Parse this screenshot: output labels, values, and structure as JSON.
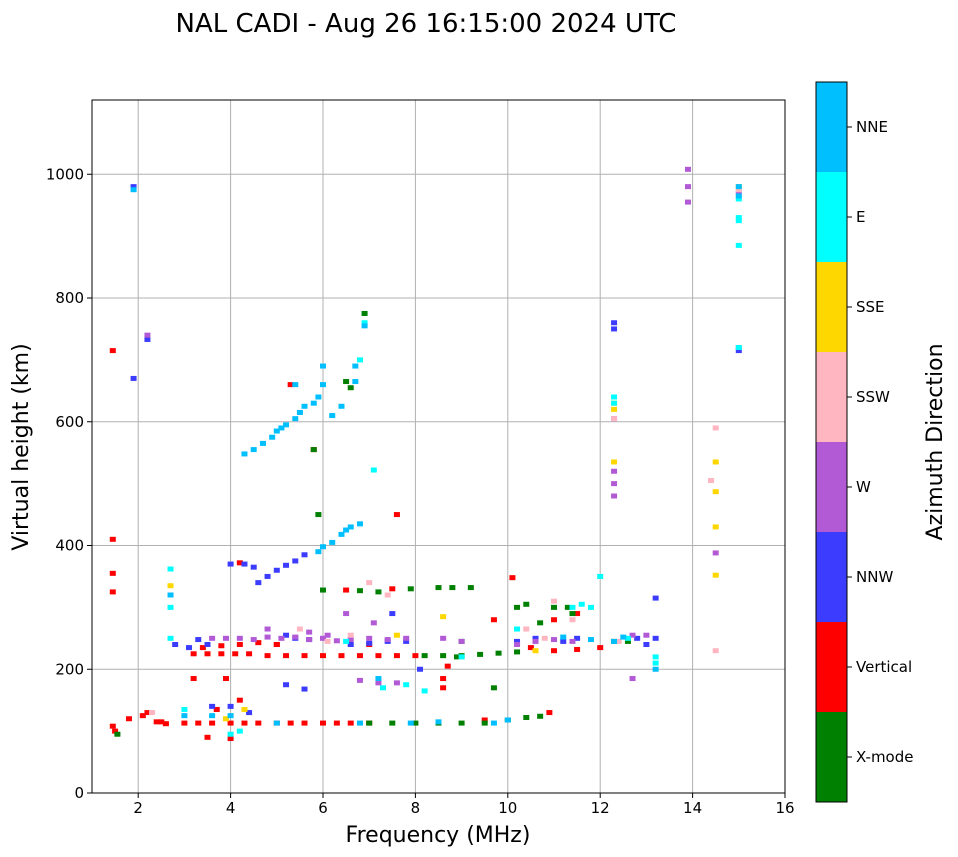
{
  "chart_data": {
    "type": "scatter",
    "title": "NAL CADI - Aug 26 16:15:00 2024 UTC",
    "xlabel": "Frequency (MHz)",
    "ylabel": "Virtual height (km)",
    "xlim": [
      1,
      16
    ],
    "ylim": [
      0,
      1120
    ],
    "xticks": [
      2,
      4,
      6,
      8,
      10,
      12,
      14,
      16
    ],
    "yticks": [
      0,
      200,
      400,
      600,
      800,
      1000
    ],
    "grid": true,
    "colorbar": {
      "title": "Azimuth Direction",
      "categories": [
        {
          "name": "X-mode",
          "color": "#008000"
        },
        {
          "name": "Vertical",
          "color": "#ff0000"
        },
        {
          "name": "NNW",
          "color": "#3c3cff"
        },
        {
          "name": "W",
          "color": "#b25ad6"
        },
        {
          "name": "SSW",
          "color": "#ffb6c1"
        },
        {
          "name": "SSE",
          "color": "#ffd700"
        },
        {
          "name": "E",
          "color": "#00ffff"
        },
        {
          "name": "NNE",
          "color": "#00bfff"
        }
      ]
    },
    "series": [
      {
        "name": "Vertical",
        "points": [
          [
            1.45,
            108
          ],
          [
            1.5,
            100
          ],
          [
            1.8,
            120
          ],
          [
            2.1,
            125
          ],
          [
            2.4,
            115
          ],
          [
            2.6,
            112
          ],
          [
            3.0,
            113
          ],
          [
            3.3,
            113
          ],
          [
            3.6,
            113
          ],
          [
            4.0,
            113
          ],
          [
            4.3,
            113
          ],
          [
            4.6,
            113
          ],
          [
            5.0,
            113
          ],
          [
            5.3,
            113
          ],
          [
            5.6,
            113
          ],
          [
            6.0,
            113
          ],
          [
            6.3,
            113
          ],
          [
            6.6,
            113
          ],
          [
            7.0,
            113
          ],
          [
            9.5,
            118
          ],
          [
            10.9,
            130
          ],
          [
            3.2,
            225
          ],
          [
            3.5,
            225
          ],
          [
            3.8,
            225
          ],
          [
            4.1,
            225
          ],
          [
            4.4,
            225
          ],
          [
            4.8,
            222
          ],
          [
            5.2,
            222
          ],
          [
            5.6,
            222
          ],
          [
            6.0,
            222
          ],
          [
            6.4,
            222
          ],
          [
            6.8,
            222
          ],
          [
            7.2,
            222
          ],
          [
            7.6,
            222
          ],
          [
            8.0,
            222
          ],
          [
            3.4,
            235
          ],
          [
            3.8,
            238
          ],
          [
            4.2,
            240
          ],
          [
            4.6,
            243
          ],
          [
            5.0,
            240
          ],
          [
            1.45,
            715
          ],
          [
            1.45,
            410
          ],
          [
            1.45,
            355
          ],
          [
            1.45,
            325
          ],
          [
            4.2,
            372
          ],
          [
            5.3,
            660
          ],
          [
            5.8,
            555
          ],
          [
            6.5,
            328
          ],
          [
            7.5,
            330
          ],
          [
            8.7,
            205
          ],
          [
            9.7,
            280
          ],
          [
            10.1,
            348
          ],
          [
            11.0,
            280
          ],
          [
            11.5,
            290
          ],
          [
            10.5,
            235
          ],
          [
            11.0,
            230
          ],
          [
            11.5,
            232
          ],
          [
            12.0,
            235
          ],
          [
            3.2,
            185
          ],
          [
            3.9,
            185
          ],
          [
            4.2,
            150
          ],
          [
            3.7,
            135
          ],
          [
            5.0,
            240
          ],
          [
            7.0,
            240
          ],
          [
            7.6,
            450
          ],
          [
            8.6,
            185
          ],
          [
            8.6,
            170
          ],
          [
            3.5,
            90
          ],
          [
            4.0,
            88
          ],
          [
            2.2,
            130
          ],
          [
            2.5,
            115
          ]
        ]
      },
      {
        "name": "X-mode",
        "points": [
          [
            7.0,
            113
          ],
          [
            7.5,
            113
          ],
          [
            8.0,
            113
          ],
          [
            8.5,
            113
          ],
          [
            9.0,
            113
          ],
          [
            9.5,
            113
          ],
          [
            10.0,
            118
          ],
          [
            10.4,
            122
          ],
          [
            10.7,
            124
          ],
          [
            8.2,
            222
          ],
          [
            8.6,
            222
          ],
          [
            9.0,
            222
          ],
          [
            9.4,
            224
          ],
          [
            9.8,
            226
          ],
          [
            10.2,
            228
          ],
          [
            8.5,
            332
          ],
          [
            8.8,
            332
          ],
          [
            9.2,
            332
          ],
          [
            6.5,
            665
          ],
          [
            6.6,
            655
          ],
          [
            6.9,
            775
          ],
          [
            1.55,
            95
          ],
          [
            5.8,
            555
          ],
          [
            5.9,
            450
          ],
          [
            10.2,
            300
          ],
          [
            10.4,
            305
          ],
          [
            10.7,
            275
          ],
          [
            11.0,
            300
          ],
          [
            11.3,
            300
          ],
          [
            11.4,
            290
          ],
          [
            12.3,
            245
          ],
          [
            12.6,
            245
          ],
          [
            9.0,
            245
          ],
          [
            8.9,
            220
          ],
          [
            7.2,
            325
          ],
          [
            7.9,
            330
          ],
          [
            6.0,
            328
          ],
          [
            6.8,
            327
          ],
          [
            9.7,
            170
          ]
        ]
      },
      {
        "name": "NNW",
        "points": [
          [
            4.6,
            340
          ],
          [
            4.8,
            350
          ],
          [
            5.0,
            360
          ],
          [
            5.2,
            368
          ],
          [
            5.4,
            375
          ],
          [
            5.6,
            385
          ],
          [
            4.0,
            370
          ],
          [
            4.3,
            370
          ],
          [
            4.5,
            365
          ],
          [
            1.9,
            980
          ],
          [
            1.9,
            670
          ],
          [
            2.2,
            733
          ],
          [
            5.2,
            255
          ],
          [
            5.4,
            250
          ],
          [
            5.7,
            248
          ],
          [
            6.6,
            240
          ],
          [
            7.0,
            242
          ],
          [
            7.4,
            245
          ],
          [
            7.8,
            245
          ],
          [
            10.2,
            245
          ],
          [
            10.6,
            250
          ],
          [
            11.2,
            245
          ],
          [
            11.5,
            250
          ],
          [
            12.3,
            750
          ],
          [
            12.3,
            760
          ],
          [
            13.2,
            315
          ],
          [
            13.2,
            250
          ],
          [
            13.0,
            240
          ],
          [
            12.8,
            250
          ],
          [
            3.6,
            140
          ],
          [
            4.0,
            140
          ],
          [
            4.4,
            130
          ],
          [
            5.2,
            175
          ],
          [
            5.6,
            168
          ],
          [
            7.5,
            290
          ],
          [
            8.1,
            200
          ],
          [
            15.0,
            715
          ],
          [
            2.8,
            240
          ],
          [
            3.1,
            235
          ],
          [
            3.3,
            248
          ],
          [
            3.5,
            240
          ]
        ]
      },
      {
        "name": "W",
        "points": [
          [
            3.6,
            250
          ],
          [
            3.9,
            250
          ],
          [
            4.2,
            250
          ],
          [
            4.5,
            248
          ],
          [
            4.8,
            252
          ],
          [
            5.1,
            250
          ],
          [
            5.4,
            252
          ],
          [
            5.7,
            248
          ],
          [
            6.0,
            250
          ],
          [
            6.3,
            246
          ],
          [
            6.6,
            248
          ],
          [
            7.0,
            250
          ],
          [
            7.4,
            248
          ],
          [
            7.8,
            250
          ],
          [
            8.6,
            250
          ],
          [
            9.0,
            245
          ],
          [
            10.2,
            240
          ],
          [
            10.6,
            245
          ],
          [
            11.0,
            248
          ],
          [
            11.4,
            245
          ],
          [
            12.7,
            255
          ],
          [
            13.0,
            255
          ],
          [
            12.7,
            185
          ],
          [
            12.3,
            480
          ],
          [
            12.3,
            500
          ],
          [
            12.3,
            520
          ],
          [
            12.3,
            605
          ],
          [
            13.9,
            1008
          ],
          [
            13.9,
            980
          ],
          [
            13.9,
            955
          ],
          [
            14.5,
            388
          ],
          [
            15.0,
            970
          ],
          [
            15.0,
            720
          ],
          [
            7.2,
            178
          ],
          [
            7.6,
            178
          ],
          [
            6.8,
            182
          ],
          [
            2.2,
            740
          ],
          [
            4.8,
            265
          ],
          [
            5.7,
            260
          ],
          [
            6.1,
            255
          ],
          [
            6.5,
            290
          ],
          [
            7.1,
            275
          ]
        ]
      },
      {
        "name": "SSW",
        "points": [
          [
            14.5,
            590
          ],
          [
            14.4,
            505
          ],
          [
            14.5,
            230
          ],
          [
            15.0,
            975
          ],
          [
            12.3,
            605
          ],
          [
            11.0,
            310
          ],
          [
            11.4,
            280
          ],
          [
            10.4,
            265
          ],
          [
            10.8,
            250
          ],
          [
            12.4,
            245
          ],
          [
            7.4,
            320
          ],
          [
            5.5,
            265
          ],
          [
            6.1,
            245
          ],
          [
            6.6,
            255
          ],
          [
            2.3,
            130
          ],
          [
            7.0,
            340
          ]
        ]
      },
      {
        "name": "SSE",
        "points": [
          [
            12.3,
            535
          ],
          [
            12.3,
            620
          ],
          [
            12.3,
            630
          ],
          [
            14.5,
            535
          ],
          [
            14.5,
            487
          ],
          [
            14.5,
            430
          ],
          [
            14.5,
            352
          ],
          [
            15.0,
            980
          ],
          [
            8.6,
            285
          ],
          [
            7.6,
            255
          ],
          [
            2.7,
            335
          ],
          [
            3.9,
            120
          ],
          [
            10.6,
            230
          ],
          [
            4.3,
            135
          ]
        ]
      },
      {
        "name": "E",
        "points": [
          [
            12.3,
            630
          ],
          [
            12.3,
            640
          ],
          [
            15.0,
            960
          ],
          [
            15.0,
            930
          ],
          [
            15.0,
            925
          ],
          [
            15.0,
            885
          ],
          [
            15.0,
            720
          ],
          [
            13.2,
            210
          ],
          [
            13.2,
            220
          ],
          [
            7.1,
            522
          ],
          [
            6.8,
            700
          ],
          [
            6.9,
            760
          ],
          [
            2.7,
            362
          ],
          [
            2.7,
            300
          ],
          [
            2.7,
            250
          ],
          [
            3.0,
            135
          ],
          [
            4.0,
            95
          ],
          [
            4.2,
            100
          ],
          [
            6.5,
            245
          ],
          [
            7.3,
            170
          ],
          [
            7.8,
            175
          ],
          [
            8.2,
            165
          ],
          [
            9.0,
            220
          ],
          [
            11.4,
            300
          ],
          [
            11.6,
            305
          ],
          [
            11.8,
            300
          ],
          [
            12.0,
            350
          ],
          [
            10.2,
            265
          ],
          [
            12.6,
            250
          ]
        ]
      },
      {
        "name": "NNE",
        "points": [
          [
            4.3,
            548
          ],
          [
            4.5,
            555
          ],
          [
            4.7,
            565
          ],
          [
            4.9,
            575
          ],
          [
            5.0,
            585
          ],
          [
            5.1,
            590
          ],
          [
            5.2,
            595
          ],
          [
            5.4,
            605
          ],
          [
            5.5,
            615
          ],
          [
            5.6,
            625
          ],
          [
            5.8,
            630
          ],
          [
            5.9,
            640
          ],
          [
            6.0,
            660
          ],
          [
            6.0,
            690
          ],
          [
            6.2,
            610
          ],
          [
            6.4,
            625
          ],
          [
            6.7,
            665
          ],
          [
            6.7,
            690
          ],
          [
            6.9,
            755
          ],
          [
            5.9,
            390
          ],
          [
            6.0,
            398
          ],
          [
            6.2,
            405
          ],
          [
            6.4,
            418
          ],
          [
            6.5,
            425
          ],
          [
            6.6,
            430
          ],
          [
            6.8,
            435
          ],
          [
            5.4,
            660
          ],
          [
            13.2,
            200
          ],
          [
            15.0,
            980
          ],
          [
            15.0,
            965
          ],
          [
            3.0,
            125
          ],
          [
            3.6,
            125
          ],
          [
            5.0,
            113
          ],
          [
            6.8,
            113
          ],
          [
            7.9,
            113
          ],
          [
            8.5,
            115
          ],
          [
            9.7,
            113
          ],
          [
            10.0,
            118
          ],
          [
            7.2,
            185
          ],
          [
            12.3,
            245
          ],
          [
            12.5,
            252
          ],
          [
            11.2,
            252
          ],
          [
            11.8,
            248
          ],
          [
            4.0,
            125
          ],
          [
            2.7,
            320
          ],
          [
            1.9,
            975
          ]
        ]
      }
    ]
  }
}
